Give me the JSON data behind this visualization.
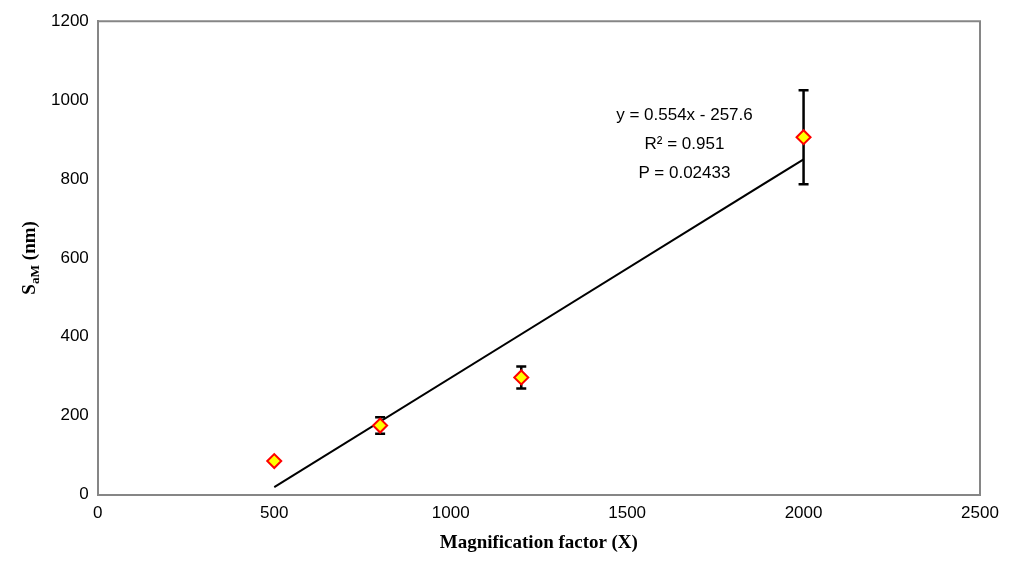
{
  "chart_data": {
    "type": "scatter",
    "xlabel": "Magnification factor (X)",
    "ylabel": "S$_{aM}$ (nm)",
    "x": [
      500,
      800,
      1200,
      2000
    ],
    "series": [
      {
        "color": "#ffff00",
        "values": [
          85,
          175,
          297,
          906
        ],
        "errors": [
          null,
          21,
          28,
          119
        ],
        "marker": "diamond"
      },
      {
        "type": "line",
        "color": "#000000",
        "x": [
          500,
          2000
        ],
        "values": [
          19,
          850
        ],
        "marker": "none"
      }
    ],
    "annotations": [
      "y = 0.554x - 257.6",
      "R² = 0.951",
      "P = 0.02433"
    ],
    "xlim": [
      0,
      2500
    ],
    "xticks": [
      0,
      500,
      1000,
      1500,
      2000,
      2500
    ],
    "ylim": [
      0,
      1200
    ],
    "yticks": [
      0,
      200,
      400,
      600,
      800,
      1000,
      1200
    ],
    "grid": false,
    "legend": false
  }
}
